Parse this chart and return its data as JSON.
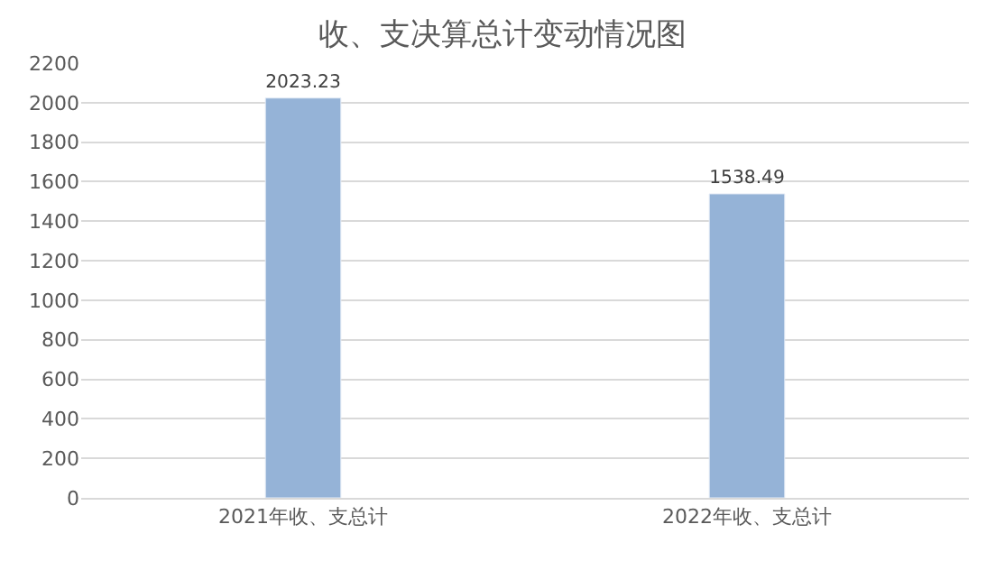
{
  "chart_data": {
    "type": "bar",
    "title": "收、支决算总计变动情况图",
    "categories": [
      "2021年收、支总计",
      "2022年收、支总计"
    ],
    "values": [
      2023.23,
      1538.49
    ],
    "color": "#95b3d7",
    "ylim": [
      0,
      2200
    ],
    "yticks": [
      0,
      200,
      400,
      600,
      800,
      1000,
      1200,
      1400,
      1600,
      1800,
      2000,
      2200
    ],
    "grid": "y",
    "data_labels": true
  }
}
